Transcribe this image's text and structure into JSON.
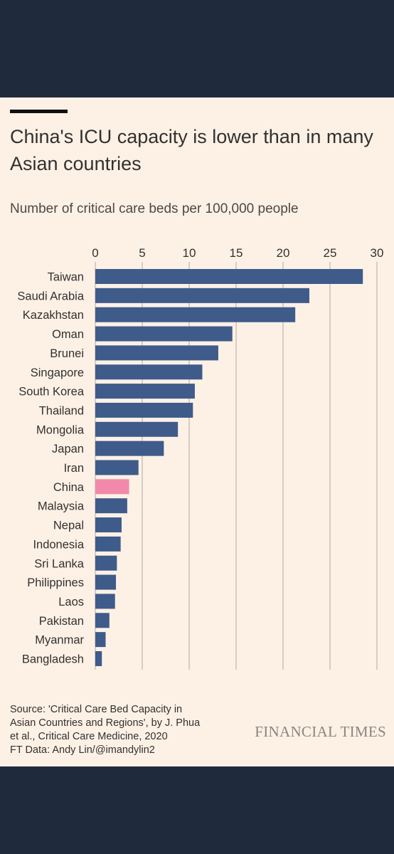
{
  "chart_data": {
    "type": "bar",
    "orientation": "horizontal",
    "title": "China's ICU capacity is lower than in many Asian countries",
    "subtitle": "Number of critical care beds per 100,000 people",
    "xlim": [
      0,
      30
    ],
    "xticks": [
      0,
      5,
      10,
      15,
      20,
      25,
      30
    ],
    "xtick_position": "top",
    "grid": "vertical",
    "categories": [
      "Taiwan",
      "Saudi Arabia",
      "Kazakhstan",
      "Oman",
      "Brunei",
      "Singapore",
      "South Korea",
      "Thailand",
      "Mongolia",
      "Japan",
      "Iran",
      "China",
      "Malaysia",
      "Nepal",
      "Indonesia",
      "Sri Lanka",
      "Philippines",
      "Laos",
      "Pakistan",
      "Myanmar",
      "Bangladesh"
    ],
    "values": [
      28.5,
      22.8,
      21.3,
      14.6,
      13.1,
      11.4,
      10.6,
      10.4,
      8.8,
      7.3,
      4.6,
      3.6,
      3.4,
      2.8,
      2.7,
      2.3,
      2.2,
      2.1,
      1.5,
      1.1,
      0.7
    ],
    "highlight": "China",
    "colors": {
      "bar": "#3e5b8a",
      "highlight": "#f18aaa",
      "grid": "#c3bab1",
      "text": "#33302e"
    }
  },
  "source_lines": [
    "Source: 'Critical Care Bed Capacity in",
    "Asian Countries and Regions', by J. Phua",
    "et al., Critical Care Medicine, 2020",
    "FT Data: Andy Lin/@imandylin2"
  ],
  "logo_text": "FINANCIAL TIMES"
}
